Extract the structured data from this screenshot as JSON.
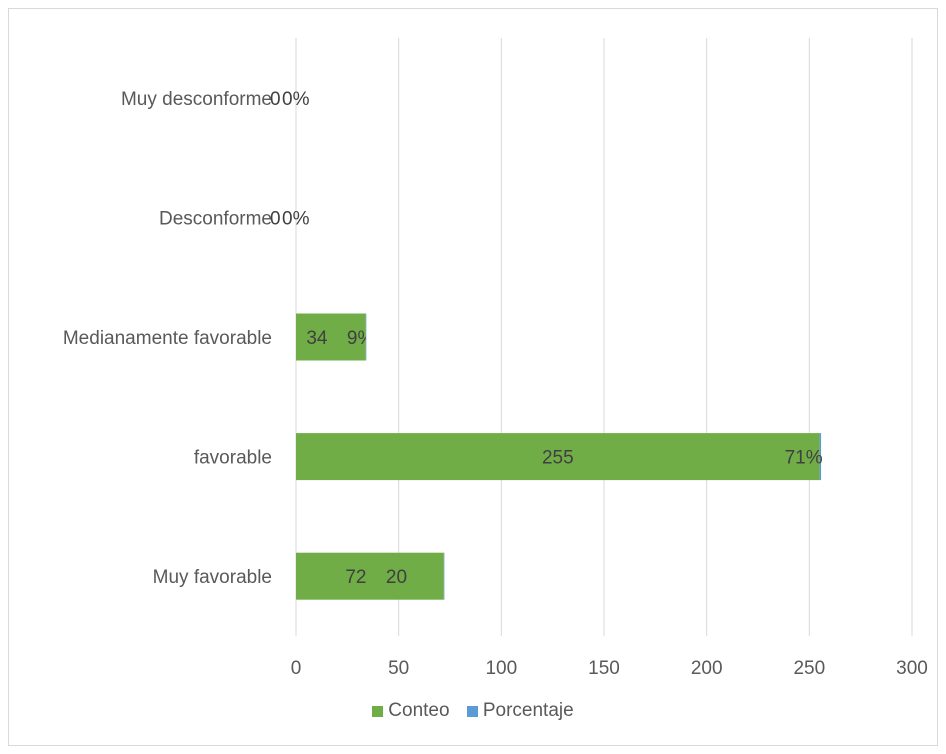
{
  "chart_data": {
    "type": "bar",
    "orientation": "horizontal",
    "stacked": true,
    "categories": [
      "Muy favorable",
      "favorable",
      "Medianamente favorable",
      "Desconforme",
      "Muy desconforme"
    ],
    "series": [
      {
        "name": "Conteo",
        "color": "#70ad47",
        "values": [
          72,
          255,
          34,
          0,
          0
        ],
        "labels": [
          "72",
          "255",
          "34",
          "0",
          "0"
        ]
      },
      {
        "name": "Porcentaje",
        "color": "#5b9bd5",
        "values": [
          0.2,
          0.71,
          0.09,
          0,
          0
        ],
        "labels": [
          "20",
          "71%",
          "9%",
          "0%",
          "0%"
        ]
      }
    ],
    "xlim": [
      0,
      300
    ],
    "xticks": [
      0,
      50,
      100,
      150,
      200,
      250,
      300
    ],
    "grid": true,
    "legend_position": "bottom"
  }
}
